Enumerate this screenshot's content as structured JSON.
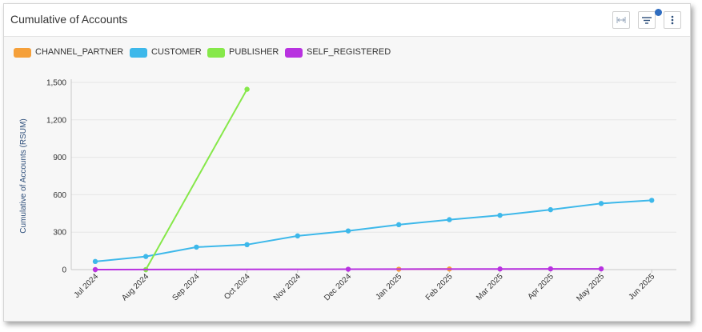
{
  "header": {
    "title": "Cumulative of Accounts",
    "icons": [
      "fit-width-icon",
      "filter-icon",
      "more-vertical-icon"
    ]
  },
  "chart_data": {
    "type": "line",
    "title": "",
    "xlabel": "",
    "ylabel": "Cumulative of Accounts (RSUM)",
    "ylim": [
      0,
      1500
    ],
    "yticks": [
      "0",
      "300",
      "600",
      "900",
      "1,200",
      "1,500"
    ],
    "yticks_values": [
      0,
      300,
      600,
      900,
      1200,
      1500
    ],
    "categories": [
      "Jul 2024",
      "Aug 2024",
      "Sep 2024",
      "Oct 2024",
      "Nov 2024",
      "Dec 2024",
      "Jan 2025",
      "Feb 2025",
      "Mar 2025",
      "Apr 2025",
      "May 2025",
      "Jun 2025"
    ],
    "legend_position": "top-left",
    "grid": true,
    "series": [
      {
        "name": "CHANNEL_PARTNER",
        "color": "#f5a03a",
        "points": [
          [
            "Jan 2025",
            3
          ],
          [
            "Feb 2025",
            5
          ]
        ]
      },
      {
        "name": "CUSTOMER",
        "color": "#3db8ea",
        "points": [
          [
            "Jul 2024",
            65
          ],
          [
            "Aug 2024",
            105
          ],
          [
            "Sep 2024",
            180
          ],
          [
            "Oct 2024",
            200
          ],
          [
            "Nov 2024",
            270
          ],
          [
            "Dec 2024",
            310
          ],
          [
            "Jan 2025",
            360
          ],
          [
            "Feb 2025",
            400
          ],
          [
            "Mar 2025",
            435
          ],
          [
            "Apr 2025",
            480
          ],
          [
            "May 2025",
            530
          ],
          [
            "Jun 2025",
            555
          ]
        ]
      },
      {
        "name": "PUBLISHER",
        "color": "#86e84a",
        "points": [
          [
            "Aug 2024",
            0
          ],
          [
            "Oct 2024",
            1445
          ]
        ]
      },
      {
        "name": "SELF_REGISTERED",
        "color": "#b832e0",
        "points": [
          [
            "Jul 2024",
            0
          ],
          [
            "Dec 2024",
            3
          ],
          [
            "Mar 2025",
            5
          ],
          [
            "Apr 2025",
            6
          ],
          [
            "May 2025",
            6
          ]
        ]
      }
    ]
  }
}
